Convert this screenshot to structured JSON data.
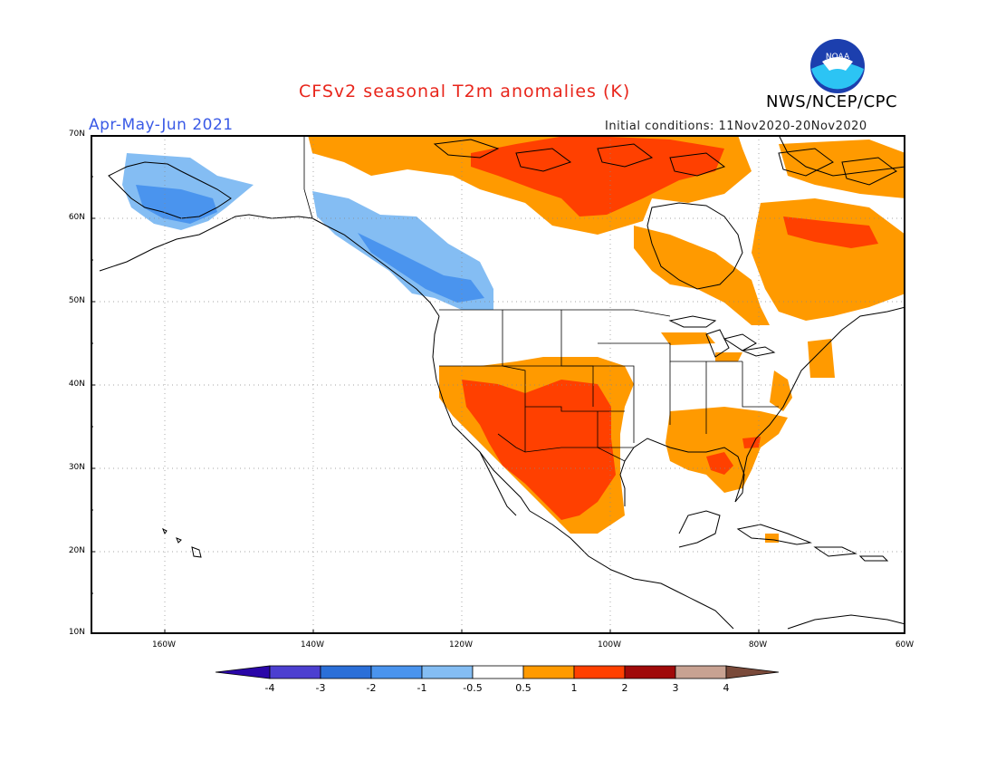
{
  "header": {
    "title": "CFSv2 seasonal T2m anomalies (K)",
    "agency": "NWS/NCEP/CPC",
    "season": "Apr-May-Jun 2021",
    "initial_conditions": "Initial conditions: 11Nov2020-20Nov2020",
    "logo_text": "NOAA"
  },
  "axes": {
    "lat_labels": [
      "70N",
      "60N",
      "50N",
      "40N",
      "30N",
      "20N",
      "10N"
    ],
    "lon_labels": [
      "160W",
      "140W",
      "120W",
      "100W",
      "80W",
      "60W"
    ]
  },
  "legend": {
    "labels": [
      "-4",
      "-3",
      "-2",
      "-1",
      "-0.5",
      "0.5",
      "1",
      "2",
      "3",
      "4"
    ],
    "colors": [
      "#2a06a8",
      "#4c3fd0",
      "#2b6fd8",
      "#4a94ee",
      "#84bdf3",
      "#ffffff",
      "#ff9a00",
      "#ff4000",
      "#a00a0a",
      "#c8a292",
      "#7a4a3a"
    ]
  },
  "colors": {
    "coast": "#000000",
    "warm1": "#ff9a00",
    "warm2": "#ff4000",
    "cool1": "#84bdf3",
    "cool2": "#4a94ee"
  }
}
